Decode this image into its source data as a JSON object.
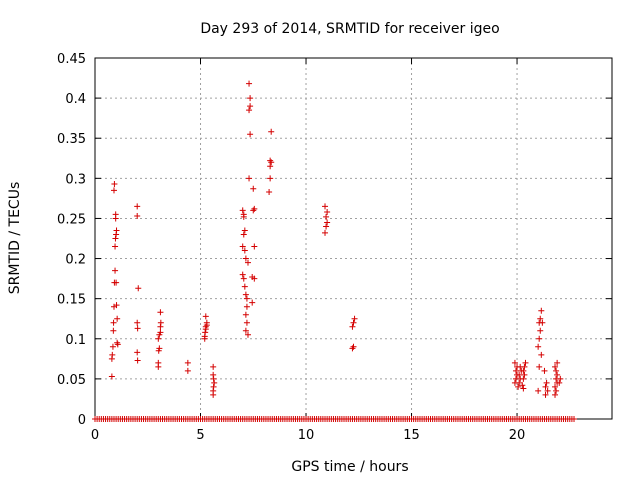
{
  "chart_data": {
    "type": "scatter",
    "title": "Day 293 of 2014, SRMTID for receiver igeo",
    "xlabel": "GPS time / hours",
    "ylabel": "SRMTID / TECUs",
    "xlim": [
      0,
      24.5
    ],
    "ylim": [
      0,
      0.45
    ],
    "xticks": [
      0,
      5,
      10,
      15,
      20
    ],
    "xtick_labels": [
      "0",
      "5",
      "10",
      "15",
      "20"
    ],
    "yticks": [
      0,
      0.05,
      0.1,
      0.15,
      0.2,
      0.25,
      0.3,
      0.35,
      0.4,
      0.45
    ],
    "ytick_labels": [
      "0",
      "0.05",
      "0.1",
      "0.15",
      "0.2",
      "0.25",
      "0.3",
      "0.35",
      "0.4",
      "0.45"
    ],
    "grid": true,
    "marker": "plus",
    "color": "#d40000",
    "baseline": {
      "y": 0,
      "x_start": 0.0,
      "x_end": 22.7,
      "step": 0.1
    },
    "points": [
      [
        0.8,
        0.053
      ],
      [
        0.8,
        0.075
      ],
      [
        0.82,
        0.08
      ],
      [
        0.85,
        0.09
      ],
      [
        0.87,
        0.11
      ],
      [
        0.88,
        0.12
      ],
      [
        0.9,
        0.14
      ],
      [
        0.92,
        0.17
      ],
      [
        0.95,
        0.185
      ],
      [
        0.95,
        0.215
      ],
      [
        0.97,
        0.225
      ],
      [
        0.98,
        0.25
      ],
      [
        0.98,
        0.255
      ],
      [
        0.9,
        0.285
      ],
      [
        0.92,
        0.293
      ],
      [
        1.0,
        0.23
      ],
      [
        1.02,
        0.235
      ],
      [
        1.0,
        0.17
      ],
      [
        1.02,
        0.142
      ],
      [
        1.05,
        0.125
      ],
      [
        1.05,
        0.095
      ],
      [
        1.08,
        0.093
      ],
      [
        2.0,
        0.265
      ],
      [
        2.0,
        0.253
      ],
      [
        2.05,
        0.163
      ],
      [
        2.0,
        0.12
      ],
      [
        2.02,
        0.113
      ],
      [
        2.0,
        0.083
      ],
      [
        2.02,
        0.073
      ],
      [
        3.0,
        0.065
      ],
      [
        3.0,
        0.07
      ],
      [
        3.02,
        0.085
      ],
      [
        3.05,
        0.088
      ],
      [
        3.0,
        0.1
      ],
      [
        3.05,
        0.105
      ],
      [
        3.1,
        0.108
      ],
      [
        3.1,
        0.115
      ],
      [
        3.12,
        0.12
      ],
      [
        3.1,
        0.133
      ],
      [
        4.4,
        0.07
      ],
      [
        4.4,
        0.06
      ],
      [
        5.2,
        0.1
      ],
      [
        5.2,
        0.103
      ],
      [
        5.22,
        0.108
      ],
      [
        5.25,
        0.112
      ],
      [
        5.25,
        0.115
      ],
      [
        5.3,
        0.117
      ],
      [
        5.3,
        0.12
      ],
      [
        5.25,
        0.128
      ],
      [
        5.6,
        0.03
      ],
      [
        5.6,
        0.035
      ],
      [
        5.62,
        0.04
      ],
      [
        5.65,
        0.045
      ],
      [
        5.62,
        0.05
      ],
      [
        5.6,
        0.055
      ],
      [
        5.6,
        0.065
      ],
      [
        7.0,
        0.26
      ],
      [
        7.05,
        0.255
      ],
      [
        7.05,
        0.252
      ],
      [
        7.1,
        0.235
      ],
      [
        7.05,
        0.23
      ],
      [
        7.0,
        0.215
      ],
      [
        7.1,
        0.21
      ],
      [
        7.15,
        0.2
      ],
      [
        7.0,
        0.18
      ],
      [
        7.05,
        0.175
      ],
      [
        7.1,
        0.165
      ],
      [
        7.15,
        0.155
      ],
      [
        7.2,
        0.15
      ],
      [
        7.2,
        0.14
      ],
      [
        7.15,
        0.13
      ],
      [
        7.2,
        0.12
      ],
      [
        7.15,
        0.11
      ],
      [
        7.25,
        0.105
      ],
      [
        7.3,
        0.3
      ],
      [
        7.35,
        0.355
      ],
      [
        7.3,
        0.385
      ],
      [
        7.35,
        0.39
      ],
      [
        7.35,
        0.4
      ],
      [
        7.3,
        0.418
      ],
      [
        7.5,
        0.26
      ],
      [
        7.55,
        0.262
      ],
      [
        7.5,
        0.287
      ],
      [
        7.55,
        0.215
      ],
      [
        7.45,
        0.177
      ],
      [
        7.55,
        0.175
      ],
      [
        7.45,
        0.145
      ],
      [
        7.25,
        0.195
      ],
      [
        8.25,
        0.283
      ],
      [
        8.3,
        0.3
      ],
      [
        8.3,
        0.315
      ],
      [
        8.35,
        0.32
      ],
      [
        8.3,
        0.322
      ],
      [
        8.35,
        0.358
      ],
      [
        10.9,
        0.232
      ],
      [
        10.95,
        0.24
      ],
      [
        11.0,
        0.245
      ],
      [
        10.95,
        0.252
      ],
      [
        11.0,
        0.258
      ],
      [
        10.9,
        0.265
      ],
      [
        12.2,
        0.088
      ],
      [
        12.25,
        0.09
      ],
      [
        12.2,
        0.115
      ],
      [
        12.25,
        0.12
      ],
      [
        12.3,
        0.125
      ],
      [
        19.9,
        0.045
      ],
      [
        19.95,
        0.05
      ],
      [
        20.0,
        0.055
      ],
      [
        19.95,
        0.06
      ],
      [
        20.0,
        0.065
      ],
      [
        19.9,
        0.07
      ],
      [
        20.05,
        0.04
      ],
      [
        20.1,
        0.045
      ],
      [
        20.15,
        0.05
      ],
      [
        20.1,
        0.055
      ],
      [
        20.2,
        0.06
      ],
      [
        20.15,
        0.065
      ],
      [
        20.3,
        0.038
      ],
      [
        20.25,
        0.042
      ],
      [
        20.3,
        0.05
      ],
      [
        20.35,
        0.055
      ],
      [
        20.3,
        0.06
      ],
      [
        20.35,
        0.065
      ],
      [
        20.4,
        0.07
      ],
      [
        21.0,
        0.035
      ],
      [
        21.05,
        0.065
      ],
      [
        21.0,
        0.09
      ],
      [
        21.05,
        0.1
      ],
      [
        21.1,
        0.11
      ],
      [
        21.05,
        0.12
      ],
      [
        21.1,
        0.125
      ],
      [
        21.15,
        0.135
      ],
      [
        21.2,
        0.12
      ],
      [
        21.15,
        0.08
      ],
      [
        21.3,
        0.06
      ],
      [
        21.35,
        0.04
      ],
      [
        21.4,
        0.045
      ],
      [
        21.35,
        0.03
      ],
      [
        21.45,
        0.035
      ],
      [
        21.8,
        0.03
      ],
      [
        21.85,
        0.035
      ],
      [
        21.8,
        0.04
      ],
      [
        21.9,
        0.045
      ],
      [
        21.85,
        0.05
      ],
      [
        21.9,
        0.055
      ],
      [
        21.85,
        0.06
      ],
      [
        21.8,
        0.065
      ],
      [
        21.9,
        0.07
      ],
      [
        22.0,
        0.045
      ],
      [
        22.05,
        0.05
      ]
    ]
  }
}
